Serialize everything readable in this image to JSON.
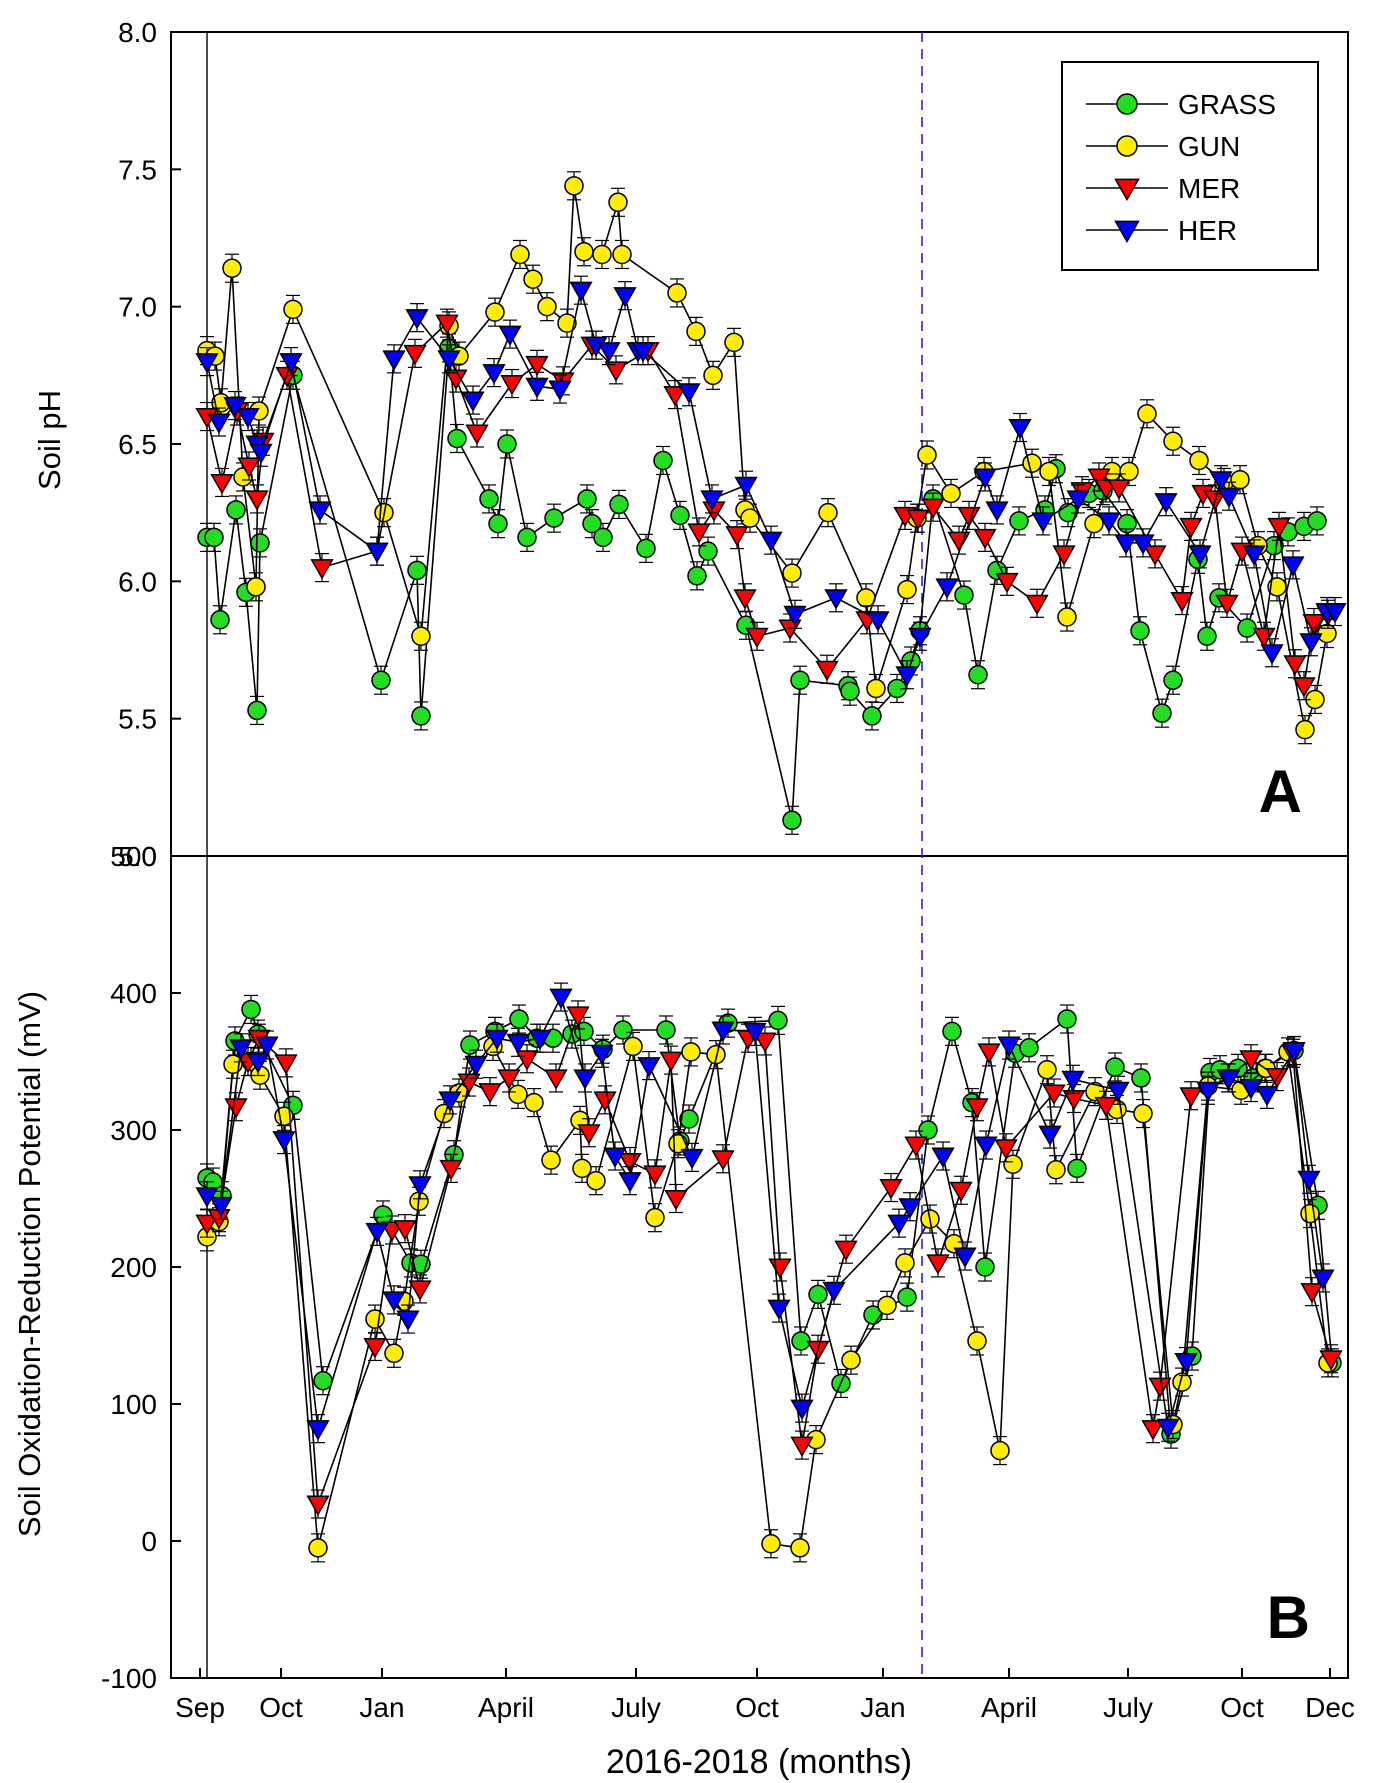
{
  "chart_data": [
    {
      "panel": "A",
      "type": "line",
      "ylabel": "Soil pH",
      "ylim": [
        5.0,
        8.0
      ],
      "yticks": [
        "5.0",
        "5.5",
        "6.0",
        "6.5",
        "7.0",
        "7.5",
        "8.0"
      ],
      "legend": [
        "GRASS",
        "GUN",
        "MER",
        "HER"
      ],
      "legend_position": "top-right",
      "series": [
        {
          "name": "GRASS",
          "color": "#22dd22",
          "marker": "circle",
          "x": [
            0,
            7,
            13,
            29,
            39,
            50,
            53,
            86,
            174,
            210,
            214,
            242,
            250,
            282,
            291,
            300,
            320,
            347,
            380,
            385,
            396,
            412,
            439,
            456,
            473,
            490,
            501,
            539,
            585,
            593,
            641,
            643,
            665,
            690,
            704,
            713,
            726,
            757,
            771,
            790,
            812,
            838,
            849,
            861,
            882,
            896,
            920,
            933,
            955,
            966,
            991,
            1000,
            1012,
            1040,
            1067,
            1081,
            1097,
            1110
          ],
          "y": [
            6.16,
            6.16,
            5.86,
            6.26,
            5.96,
            5.53,
            6.14,
            6.75,
            5.64,
            6.04,
            5.51,
            6.85,
            6.52,
            6.3,
            6.21,
            6.5,
            6.16,
            6.23,
            6.3,
            6.21,
            6.16,
            6.28,
            6.12,
            6.44,
            6.24,
            6.02,
            6.11,
            5.84,
            5.13,
            5.64,
            5.62,
            5.6,
            5.51,
            5.61,
            5.71,
            5.82,
            6.3,
            5.95,
            5.66,
            6.04,
            6.22,
            6.26,
            6.41,
            6.25,
            6.32,
            6.33,
            6.21,
            5.82,
            5.52,
            5.64,
            6.08,
            5.8,
            5.94,
            5.83,
            6.13,
            6.18,
            6.2,
            6.22
          ]
        },
        {
          "name": "GUN",
          "color": "#ffee00",
          "marker": "circle",
          "x": [
            0,
            8,
            14,
            25,
            36,
            49,
            52,
            86,
            177,
            214,
            242,
            252,
            288,
            313,
            326,
            340,
            360,
            367,
            377,
            395,
            411,
            415,
            470,
            489,
            506,
            527,
            538,
            543,
            585,
            621,
            659,
            669,
            700,
            710,
            720,
            744,
            777,
            825,
            842,
            860,
            887,
            905,
            922,
            940,
            966,
            992,
            1017,
            1033,
            1051,
            1070,
            1098,
            1108,
            1120
          ],
          "y": [
            6.84,
            6.82,
            6.65,
            7.14,
            6.38,
            5.98,
            6.62,
            6.99,
            6.25,
            5.8,
            6.93,
            6.82,
            6.98,
            7.19,
            7.1,
            7.0,
            6.94,
            7.44,
            7.2,
            7.19,
            7.38,
            7.19,
            7.05,
            6.91,
            6.75,
            6.87,
            6.26,
            6.23,
            6.03,
            6.25,
            5.94,
            5.61,
            5.97,
            6.23,
            6.46,
            6.32,
            6.4,
            6.43,
            6.4,
            5.87,
            6.21,
            6.4,
            6.4,
            6.61,
            6.51,
            6.44,
            6.36,
            6.37,
            6.13,
            5.98,
            5.46,
            5.57,
            5.81
          ]
        },
        {
          "name": "MER",
          "color": "#ff0000",
          "marker": "triangle-down",
          "x": [
            0,
            15,
            30,
            42,
            50,
            56,
            80,
            115,
            170,
            208,
            240,
            249,
            270,
            305,
            330,
            356,
            385,
            409,
            441,
            468,
            492,
            507,
            530,
            538,
            550,
            583,
            620,
            660,
            698,
            711,
            726,
            752,
            762,
            778,
            800,
            830,
            857,
            875,
            892,
            899,
            912,
            948,
            975,
            984,
            996,
            1008,
            1020,
            1035,
            1057,
            1072,
            1088,
            1097,
            1107,
            1121
          ],
          "y": [
            6.6,
            6.36,
            6.62,
            6.42,
            6.3,
            6.51,
            6.75,
            6.05,
            6.11,
            6.83,
            6.94,
            6.74,
            6.54,
            6.72,
            6.79,
            6.73,
            6.86,
            6.77,
            6.84,
            6.68,
            6.18,
            6.26,
            6.17,
            5.94,
            5.8,
            5.83,
            5.68,
            5.86,
            6.24,
            6.23,
            6.27,
            6.15,
            6.24,
            6.16,
            6.0,
            5.92,
            6.1,
            6.33,
            6.38,
            6.34,
            6.34,
            6.1,
            5.93,
            6.2,
            6.32,
            6.3,
            5.92,
            6.11,
            5.8,
            6.2,
            5.7,
            5.62,
            5.85,
            5.88
          ]
        },
        {
          "name": "HER",
          "color": "#0000ff",
          "marker": "triangle-down",
          "x": [
            0,
            12,
            28,
            41,
            50,
            54,
            84,
            113,
            170,
            187,
            210,
            242,
            266,
            287,
            303,
            330,
            353,
            374,
            389,
            402,
            418,
            431,
            436,
            482,
            505,
            539,
            564,
            588,
            629,
            671,
            700,
            713,
            740,
            778,
            790,
            813,
            836,
            871,
            902,
            919,
            936,
            959,
            993,
            1014,
            1022,
            1047,
            1065,
            1086,
            1104,
            1120,
            1128
          ],
          "y": [
            6.8,
            6.58,
            6.64,
            6.6,
            6.5,
            6.47,
            6.8,
            6.26,
            6.11,
            6.81,
            6.96,
            6.81,
            6.66,
            6.76,
            6.9,
            6.71,
            6.7,
            7.06,
            6.86,
            6.84,
            7.04,
            6.84,
            6.84,
            6.69,
            6.3,
            6.35,
            6.15,
            5.88,
            5.94,
            5.86,
            5.66,
            5.8,
            5.98,
            6.38,
            6.26,
            6.56,
            6.22,
            6.3,
            6.22,
            6.14,
            6.14,
            6.29,
            6.1,
            6.37,
            6.31,
            6.1,
            5.74,
            6.06,
            5.78,
            5.89,
            5.89
          ]
        }
      ]
    },
    {
      "panel": "B",
      "type": "line",
      "ylabel": "Soil Oxidation-Reduction Potential (mV)",
      "ylim": [
        -100,
        500
      ],
      "yticks": [
        "-100",
        "0",
        "100",
        "200",
        "300",
        "400",
        "500"
      ],
      "xlabel": "2016-2018 (months)",
      "xticks": [
        "Sep",
        "Oct",
        "Jan",
        "April",
        "July",
        "Oct",
        "Jan",
        "April",
        "July",
        "Oct",
        "Dec"
      ],
      "series": [
        {
          "name": "GRASS",
          "color": "#22dd22",
          "marker": "circle",
          "x": [
            0,
            6,
            15,
            28,
            44,
            51,
            86,
            116,
            176,
            204,
            214,
            247,
            263,
            288,
            312,
            330,
            346,
            365,
            377,
            396,
            416,
            459,
            473,
            482,
            521,
            571,
            594,
            611,
            634,
            666,
            700,
            721,
            745,
            765,
            778,
            808,
            822,
            860,
            870,
            908,
            934,
            964,
            985,
            1003,
            1013,
            1031,
            1046,
            1058,
            1087,
            1111,
            1125
          ],
          "y": [
            265,
            262,
            252,
            365,
            388,
            370,
            318,
            117,
            238,
            203,
            202,
            282,
            362,
            372,
            381,
            367,
            367,
            370,
            372,
            359,
            373,
            373,
            292,
            308,
            378,
            380,
            146,
            180,
            115,
            165,
            178,
            300,
            372,
            320,
            200,
            356,
            360,
            381,
            272,
            346,
            338,
            78,
            135,
            342,
            344,
            345,
            338,
            345,
            358,
            245,
            130
          ]
        },
        {
          "name": "GUN",
          "color": "#ffee00",
          "marker": "circle",
          "x": [
            0,
            12,
            26,
            44,
            53,
            77,
            111,
            168,
            187,
            197,
            212,
            237,
            252,
            286,
            311,
            327,
            344,
            373,
            375,
            389,
            426,
            448,
            471,
            484,
            509,
            564,
            593,
            609,
            644,
            680,
            698,
            723,
            747,
            770,
            793,
            806,
            840,
            849,
            888,
            910,
            936,
            966,
            975,
            1001,
            1034,
            1059,
            1081,
            1103,
            1121
          ],
          "y": [
            222,
            233,
            348,
            350,
            340,
            310,
            -5,
            162,
            137,
            175,
            248,
            312,
            327,
            361,
            326,
            320,
            278,
            307,
            272,
            263,
            361,
            236,
            290,
            357,
            355,
            -2,
            -5,
            74,
            132,
            172,
            203,
            235,
            217,
            146,
            66,
            275,
            344,
            271,
            328,
            315,
            312,
            85,
            116,
            332,
            329,
            345,
            357,
            239,
            130
          ]
        },
        {
          "name": "MER",
          "color": "#ff0000",
          "marker": "triangle-down",
          "x": [
            0,
            12,
            29,
            41,
            52,
            79,
            111,
            168,
            185,
            198,
            213,
            244,
            262,
            283,
            302,
            320,
            349,
            371,
            382,
            398,
            423,
            448,
            464,
            469,
            516,
            541,
            558,
            573,
            595,
            611,
            639,
            684,
            709,
            731,
            754,
            770,
            782,
            799,
            847,
            867,
            899,
            946,
            953,
            984,
            1021,
            1044,
            1070,
            1086,
            1105,
            1124
          ],
          "y": [
            232,
            236,
            317,
            350,
            367,
            349,
            27,
            142,
            227,
            228,
            184,
            272,
            335,
            328,
            338,
            352,
            338,
            384,
            298,
            322,
            277,
            268,
            351,
            250,
            279,
            367,
            365,
            200,
            70,
            140,
            213,
            258,
            289,
            203,
            256,
            317,
            357,
            287,
            327,
            323,
            318,
            82,
            113,
            325,
            338,
            352,
            339,
            356,
            182,
            133
          ]
        },
        {
          "name": "HER",
          "color": "#0000ff",
          "marker": "triangle-down",
          "x": [
            0,
            14,
            34,
            51,
            60,
            77,
            111,
            170,
            187,
            201,
            213,
            243,
            269,
            290,
            311,
            333,
            354,
            378,
            395,
            408,
            423,
            442,
            485,
            516,
            548,
            572,
            595,
            627,
            692,
            703,
            736,
            758,
            779,
            802,
            843,
            866,
            911,
            961,
            979,
            1001,
            1022,
            1044,
            1060,
            1087,
            1102,
            1116
          ],
          "y": [
            252,
            245,
            360,
            350,
            362,
            293,
            82,
            226,
            176,
            162,
            260,
            322,
            348,
            367,
            364,
            367,
            397,
            338,
            356,
            281,
            263,
            347,
            280,
            373,
            372,
            170,
            97,
            183,
            232,
            244,
            281,
            208,
            289,
            362,
            297,
            337,
            329,
            83,
            131,
            329,
            338,
            331,
            326,
            358,
            264,
            192
          ]
        }
      ]
    }
  ]
}
